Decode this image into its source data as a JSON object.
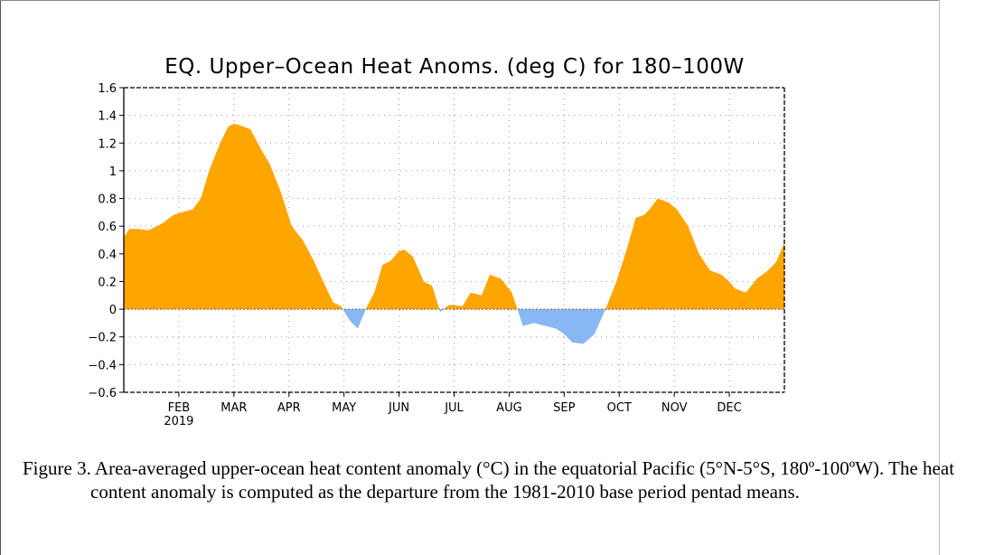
{
  "chart_data": {
    "type": "area",
    "title": "EQ. Upper–Ocean Heat Anoms. (deg C) for 180–100W",
    "xlabel": "",
    "ylabel": "",
    "ylim": [
      -0.6,
      1.6
    ],
    "yticks": [
      1.6,
      1.4,
      1.2,
      1,
      0.8,
      0.6,
      0.4,
      0.2,
      0,
      -0.2,
      -0.4,
      -0.6
    ],
    "ytick_labels": [
      "1.6",
      "1.4",
      "1.2",
      "1",
      "0.8",
      "0.6",
      "0.4",
      "0.2",
      "0",
      "−0.2",
      "−0.4",
      "−0.6"
    ],
    "xlim": [
      0,
      12
    ],
    "xticks": [
      {
        "x": 1,
        "label": "FEB",
        "sublabel": "2019"
      },
      {
        "x": 2,
        "label": "MAR"
      },
      {
        "x": 3,
        "label": "APR"
      },
      {
        "x": 4,
        "label": "MAY"
      },
      {
        "x": 5,
        "label": "JUN"
      },
      {
        "x": 6,
        "label": "JUL"
      },
      {
        "x": 7,
        "label": "AUG"
      },
      {
        "x": 8,
        "label": "SEP"
      },
      {
        "x": 9,
        "label": "OCT"
      },
      {
        "x": 10,
        "label": "NOV"
      },
      {
        "x": 11,
        "label": "DEC"
      }
    ],
    "grid": true,
    "positive_color": "#FFA500",
    "negative_color": "#87B8F5",
    "x": [
      0.0,
      0.1,
      0.25,
      0.45,
      0.7,
      0.9,
      1.05,
      1.25,
      1.4,
      1.55,
      1.75,
      1.9,
      2.0,
      2.1,
      2.3,
      2.5,
      2.65,
      2.85,
      3.05,
      3.25,
      3.45,
      3.6,
      3.8,
      3.95,
      4.1,
      4.25,
      4.42,
      4.55,
      4.7,
      4.85,
      5.0,
      5.1,
      5.25,
      5.45,
      5.6,
      5.75,
      5.9,
      6.0,
      6.15,
      6.3,
      6.5,
      6.65,
      6.85,
      7.05,
      7.25,
      7.45,
      7.65,
      7.85,
      8.0,
      8.15,
      8.35,
      8.55,
      8.75,
      8.95,
      9.15,
      9.3,
      9.45,
      9.55,
      9.7,
      9.9,
      10.05,
      10.25,
      10.45,
      10.65,
      10.85,
      11.0,
      11.1,
      11.3,
      11.5,
      11.7,
      11.85,
      12.0
    ],
    "y": [
      0.52,
      0.58,
      0.58,
      0.57,
      0.62,
      0.68,
      0.7,
      0.72,
      0.8,
      1.0,
      1.2,
      1.32,
      1.34,
      1.33,
      1.3,
      1.15,
      1.05,
      0.85,
      0.6,
      0.5,
      0.35,
      0.22,
      0.05,
      0.02,
      -0.08,
      -0.14,
      0.02,
      0.12,
      0.32,
      0.35,
      0.42,
      0.43,
      0.38,
      0.2,
      0.17,
      -0.02,
      0.03,
      0.03,
      0.02,
      0.12,
      0.1,
      0.25,
      0.22,
      0.12,
      -0.12,
      -0.1,
      -0.12,
      -0.14,
      -0.18,
      -0.24,
      -0.25,
      -0.18,
      0.0,
      0.2,
      0.45,
      0.66,
      0.68,
      0.72,
      0.8,
      0.77,
      0.72,
      0.6,
      0.4,
      0.28,
      0.25,
      0.2,
      0.15,
      0.12,
      0.22,
      0.28,
      0.34,
      0.48
    ]
  },
  "caption": "Figure 3. Area-averaged upper-ocean heat content anomaly (°C) in the equatorial Pacific (5°N-5°S, 180º-100ºW). The heat content anomaly is computed as the departure from the 1981-2010 base period pentad means."
}
